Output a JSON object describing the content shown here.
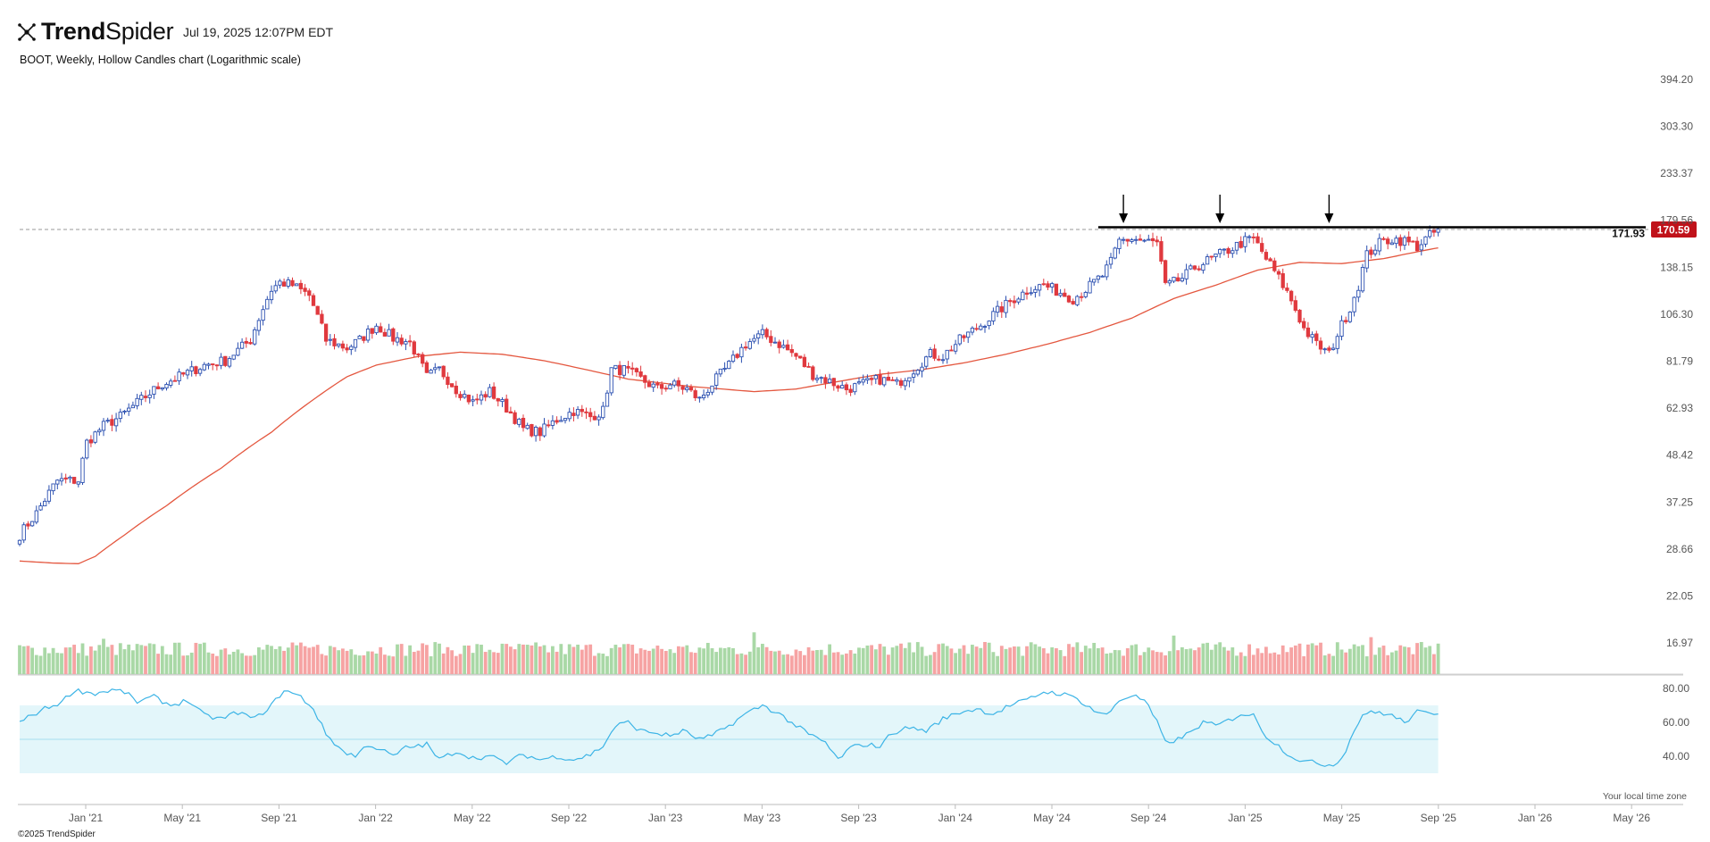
{
  "header": {
    "brand": "TrendSpider",
    "timestamp": "Jul 19, 2025 12:07PM EDT",
    "subtitle": "BOOT, Weekly, Hollow Candles chart (Logarithmic scale)",
    "copyright": "©2025 TrendSpider",
    "tz_note": "Your local time zone"
  },
  "colors": {
    "bull": "#2a4fb0",
    "bear": "#e0393e",
    "ma": "#e4573f",
    "vol_up": "#a9d8a6",
    "vol_down": "#f6a3a3",
    "rsi": "#3cb4e6",
    "rsi_band": "#e3f6fa",
    "price_tag": "#c0121a"
  },
  "chart_data": {
    "type": "candlestick",
    "scale": "log",
    "y_ticks": [
      "394.20",
      "303.30",
      "233.37",
      "179.56",
      "138.15",
      "106.30",
      "81.79",
      "62.93",
      "48.42",
      "37.25",
      "28.66",
      "22.05",
      "16.97"
    ],
    "x_ticks": [
      "Jan '21",
      "May '21",
      "Sep '21",
      "Jan '22",
      "May '22",
      "Sep '22",
      "Jan '23",
      "May '23",
      "Sep '23",
      "Jan '24",
      "May '24",
      "Sep '24",
      "Jan '25",
      "May '25",
      "Sep '25",
      "Jan '26",
      "May '26"
    ],
    "ylim": [
      16.5,
      394.2
    ],
    "last_price": "170.59",
    "resistance_label": "171.93",
    "resistance": 171.93,
    "close_anchors": [
      [
        0,
        31
      ],
      [
        4,
        35
      ],
      [
        9,
        42
      ],
      [
        14,
        42
      ],
      [
        16,
        52
      ],
      [
        20,
        57
      ],
      [
        24,
        60
      ],
      [
        29,
        66
      ],
      [
        34,
        72
      ],
      [
        38,
        75
      ],
      [
        44,
        80
      ],
      [
        49,
        82
      ],
      [
        55,
        92
      ],
      [
        60,
        122
      ],
      [
        62,
        127
      ],
      [
        65,
        125
      ],
      [
        69,
        118
      ],
      [
        73,
        92
      ],
      [
        78,
        88
      ],
      [
        81,
        92
      ],
      [
        85,
        100
      ],
      [
        89,
        93
      ],
      [
        93,
        91
      ],
      [
        97,
        75
      ],
      [
        100,
        78
      ],
      [
        104,
        70
      ],
      [
        108,
        65
      ],
      [
        112,
        69
      ],
      [
        116,
        63
      ],
      [
        120,
        56
      ],
      [
        124,
        55
      ],
      [
        128,
        59
      ],
      [
        132,
        62
      ],
      [
        136,
        60
      ],
      [
        139,
        62
      ],
      [
        141,
        78
      ],
      [
        144,
        78
      ],
      [
        148,
        74
      ],
      [
        152,
        70
      ],
      [
        155,
        72
      ],
      [
        159,
        70
      ],
      [
        162,
        66
      ],
      [
        165,
        72
      ],
      [
        169,
        80
      ],
      [
        173,
        90
      ],
      [
        177,
        95
      ],
      [
        181,
        90
      ],
      [
        185,
        84
      ],
      [
        189,
        76
      ],
      [
        193,
        73
      ],
      [
        197,
        70
      ],
      [
        201,
        72
      ],
      [
        205,
        74
      ],
      [
        209,
        72
      ],
      [
        213,
        78
      ],
      [
        217,
        85
      ],
      [
        220,
        84
      ],
      [
        224,
        92
      ],
      [
        229,
        100
      ],
      [
        233,
        108
      ],
      [
        237,
        116
      ],
      [
        241,
        123
      ],
      [
        244,
        125
      ],
      [
        248,
        120
      ],
      [
        251,
        116
      ],
      [
        254,
        122
      ],
      [
        258,
        132
      ],
      [
        260,
        142
      ],
      [
        262,
        160
      ],
      [
        265,
        162
      ],
      [
        268,
        160
      ],
      [
        271,
        158
      ],
      [
        273,
        124
      ],
      [
        277,
        130
      ],
      [
        280,
        138
      ],
      [
        284,
        145
      ],
      [
        288,
        152
      ],
      [
        292,
        160
      ],
      [
        294,
        162
      ],
      [
        297,
        145
      ],
      [
        300,
        130
      ],
      [
        303,
        115
      ],
      [
        306,
        98
      ],
      [
        309,
        90
      ],
      [
        312,
        85
      ],
      [
        315,
        100
      ],
      [
        317,
        110
      ],
      [
        319,
        125
      ],
      [
        321,
        148
      ],
      [
        324,
        158
      ],
      [
        327,
        162
      ],
      [
        330,
        160
      ],
      [
        333,
        155
      ],
      [
        336,
        165
      ],
      [
        338,
        170
      ]
    ],
    "ma_anchors": [
      [
        0,
        26.8
      ],
      [
        8,
        26.5
      ],
      [
        14,
        26.4
      ],
      [
        18,
        27.5
      ],
      [
        25,
        31
      ],
      [
        35,
        36.5
      ],
      [
        48,
        45
      ],
      [
        60,
        55
      ],
      [
        70,
        66
      ],
      [
        78,
        75
      ],
      [
        85,
        80
      ],
      [
        95,
        84
      ],
      [
        105,
        86
      ],
      [
        115,
        85
      ],
      [
        125,
        82
      ],
      [
        135,
        78
      ],
      [
        145,
        74
      ],
      [
        160,
        71
      ],
      [
        175,
        69
      ],
      [
        185,
        70
      ],
      [
        195,
        73
      ],
      [
        205,
        76
      ],
      [
        215,
        78
      ],
      [
        225,
        81
      ],
      [
        235,
        85
      ],
      [
        245,
        90
      ],
      [
        255,
        96
      ],
      [
        265,
        104
      ],
      [
        275,
        116
      ],
      [
        285,
        125
      ],
      [
        295,
        136
      ],
      [
        305,
        142
      ],
      [
        315,
        141
      ],
      [
        325,
        145
      ],
      [
        335,
        152
      ],
      [
        338,
        154
      ]
    ],
    "rsi_ylim": [
      30,
      80
    ],
    "rsi_ticks": [
      "80.00",
      "60.00",
      "40.00"
    ],
    "rsi_band": [
      30,
      70
    ],
    "rsi_mid": 50,
    "rsi_anchors": [
      [
        0,
        60
      ],
      [
        5,
        67
      ],
      [
        10,
        72
      ],
      [
        13,
        79
      ],
      [
        18,
        77
      ],
      [
        22,
        79
      ],
      [
        25,
        78
      ],
      [
        28,
        72
      ],
      [
        32,
        75
      ],
      [
        36,
        70
      ],
      [
        40,
        73
      ],
      [
        44,
        64
      ],
      [
        48,
        62
      ],
      [
        52,
        66
      ],
      [
        56,
        62
      ],
      [
        60,
        70
      ],
      [
        63,
        79
      ],
      [
        67,
        75
      ],
      [
        70,
        68
      ],
      [
        73,
        53
      ],
      [
        77,
        43
      ],
      [
        80,
        40
      ],
      [
        83,
        47
      ],
      [
        86,
        44
      ],
      [
        89,
        40
      ],
      [
        92,
        45
      ],
      [
        97,
        47
      ],
      [
        100,
        38
      ],
      [
        104,
        43
      ],
      [
        108,
        39
      ],
      [
        112,
        40
      ],
      [
        116,
        36
      ],
      [
        120,
        41
      ],
      [
        124,
        38
      ],
      [
        128,
        40
      ],
      [
        132,
        38
      ],
      [
        136,
        41
      ],
      [
        139,
        46
      ],
      [
        142,
        58
      ],
      [
        145,
        60
      ],
      [
        148,
        55
      ],
      [
        151,
        54
      ],
      [
        155,
        52
      ],
      [
        158,
        55
      ],
      [
        162,
        50
      ],
      [
        165,
        52
      ],
      [
        169,
        58
      ],
      [
        173,
        65
      ],
      [
        177,
        70
      ],
      [
        181,
        65
      ],
      [
        185,
        58
      ],
      [
        188,
        53
      ],
      [
        192,
        48
      ],
      [
        195,
        38
      ],
      [
        198,
        45
      ],
      [
        201,
        47
      ],
      [
        205,
        46
      ],
      [
        208,
        54
      ],
      [
        212,
        57
      ],
      [
        216,
        55
      ],
      [
        220,
        62
      ],
      [
        224,
        66
      ],
      [
        228,
        68
      ],
      [
        232,
        65
      ],
      [
        236,
        70
      ],
      [
        240,
        73
      ],
      [
        244,
        78
      ],
      [
        248,
        77
      ],
      [
        252,
        74
      ],
      [
        256,
        67
      ],
      [
        259,
        64
      ],
      [
        262,
        73
      ],
      [
        265,
        76
      ],
      [
        268,
        73
      ],
      [
        271,
        60
      ],
      [
        273,
        48
      ],
      [
        276,
        50
      ],
      [
        279,
        54
      ],
      [
        282,
        60
      ],
      [
        285,
        58
      ],
      [
        288,
        61
      ],
      [
        291,
        65
      ],
      [
        294,
        64
      ],
      [
        297,
        52
      ],
      [
        300,
        46
      ],
      [
        303,
        40
      ],
      [
        306,
        37
      ],
      [
        309,
        36
      ],
      [
        312,
        35
      ],
      [
        314,
        36
      ],
      [
        316,
        44
      ],
      [
        318,
        55
      ],
      [
        320,
        65
      ],
      [
        324,
        66
      ],
      [
        327,
        64
      ],
      [
        330,
        60
      ],
      [
        333,
        66
      ],
      [
        336,
        65
      ],
      [
        338,
        66
      ]
    ],
    "volume_spikes": [
      [
        20,
        2.2
      ],
      [
        70,
        1.7
      ],
      [
        100,
        1.9
      ],
      [
        125,
        1.8
      ],
      [
        158,
        1.7
      ],
      [
        175,
        2.6
      ],
      [
        190,
        1.5
      ],
      [
        215,
        1.7
      ],
      [
        230,
        2.0
      ],
      [
        255,
        1.6
      ],
      [
        275,
        2.4
      ],
      [
        295,
        1.6
      ],
      [
        305,
        1.9
      ],
      [
        322,
        2.3
      ]
    ],
    "arrow_indices": [
      263,
      286,
      312
    ]
  }
}
